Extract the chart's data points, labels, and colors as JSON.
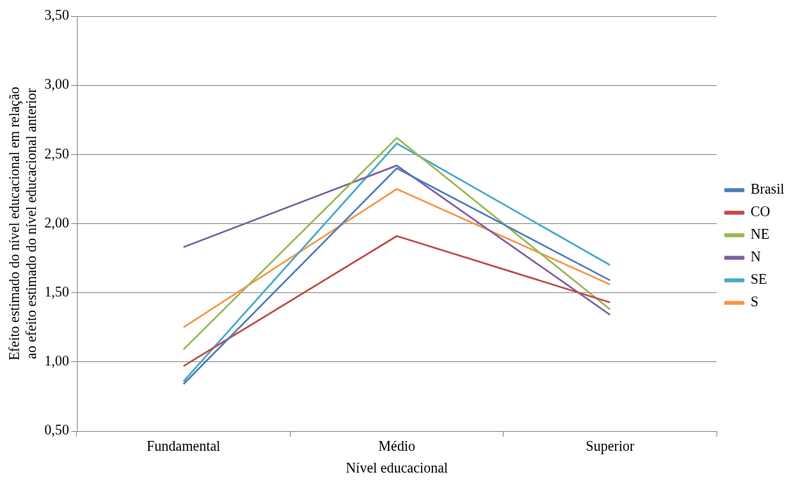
{
  "chart_data": {
    "type": "line",
    "xlabel": "Nível educacional",
    "ylabel": "Efeito estimado do nível educacional em relação\nao efeito estimado do nível educacional anterior",
    "categories": [
      "Fundamental",
      "Médio",
      "Superior"
    ],
    "series": [
      {
        "name": "Brasil",
        "color": "#4a7ebb",
        "values": [
          0.84,
          2.4,
          1.59
        ]
      },
      {
        "name": "CO",
        "color": "#be4b48",
        "values": [
          0.97,
          1.91,
          1.43
        ]
      },
      {
        "name": "NE",
        "color": "#98b954",
        "values": [
          1.09,
          2.62,
          1.38
        ]
      },
      {
        "name": "N",
        "color": "#7d60a0",
        "values": [
          1.83,
          2.42,
          1.34
        ]
      },
      {
        "name": "SE",
        "color": "#46aac5",
        "values": [
          0.86,
          2.58,
          1.7
        ]
      },
      {
        "name": "S",
        "color": "#f79646",
        "values": [
          1.25,
          2.25,
          1.56
        ]
      }
    ],
    "ylim": [
      0.5,
      3.5
    ],
    "yticks": [
      {
        "value": 0.5,
        "label": "0,50"
      },
      {
        "value": 1,
        "label": "1,00"
      },
      {
        "value": 1.5,
        "label": "1,50"
      },
      {
        "value": 2,
        "label": "2,00"
      },
      {
        "value": 2.5,
        "label": "2,50"
      },
      {
        "value": 3,
        "label": "3,00"
      },
      {
        "value": 3.5,
        "label": "3,50"
      }
    ],
    "grid": "y",
    "legend": "right",
    "marker": "none",
    "line_style": "solid"
  }
}
